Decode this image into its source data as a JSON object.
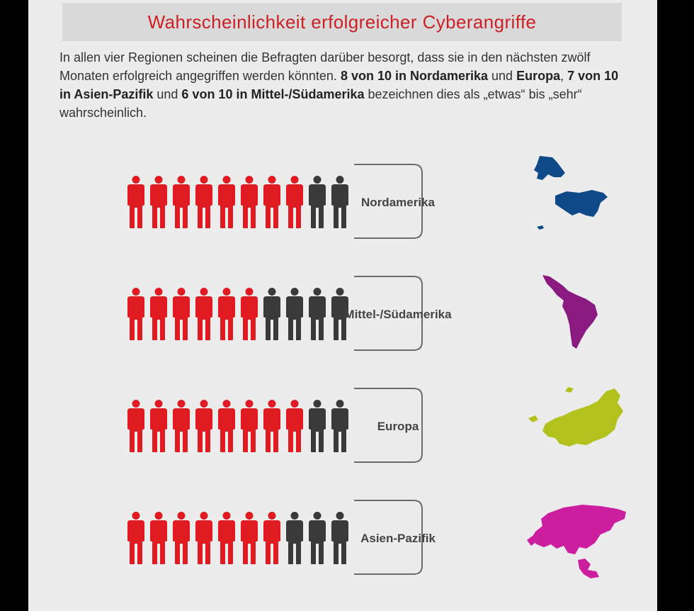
{
  "title": "Wahrscheinlichkeit erfolgreicher Cyberangriffe",
  "intro": {
    "p1": "In allen vier Regionen scheinen die Befragten darüber besorgt, dass sie in den nächsten zwölf Monaten erfolgreich angegriffen werden könnten. ",
    "b1": "8 von 10 in Nordamerika",
    "p2": " und ",
    "b2": "Europa",
    "p3": ", ",
    "b3": "7 von 10 in Asien-Pazifik",
    "p4": " und ",
    "b4": "6 von 10 in Mittel-/Südamerika",
    "p5": " bezeichnen dies als „etwas“ bis „sehr“ wahrscheinlich."
  },
  "colors": {
    "title": "#cc1f26",
    "highlight": "#e01b22",
    "rest": "#3a3a3a",
    "bracket": "#6b6b6b",
    "background": "#ececec"
  },
  "chart_data": {
    "type": "pictogram",
    "unit_total": 10,
    "categories": [
      "Nordamerika",
      "Mittel-/Südamerika",
      "Europa",
      "Asien-Pazifik"
    ],
    "values": [
      8,
      6,
      8,
      7
    ],
    "map_colors": [
      "#0e4a87",
      "#8a1a7f",
      "#b3c11c",
      "#cc1fa0"
    ],
    "map_icons": [
      "north-america-map-icon",
      "latin-america-map-icon",
      "europe-map-icon",
      "asia-pacific-map-icon"
    ]
  }
}
